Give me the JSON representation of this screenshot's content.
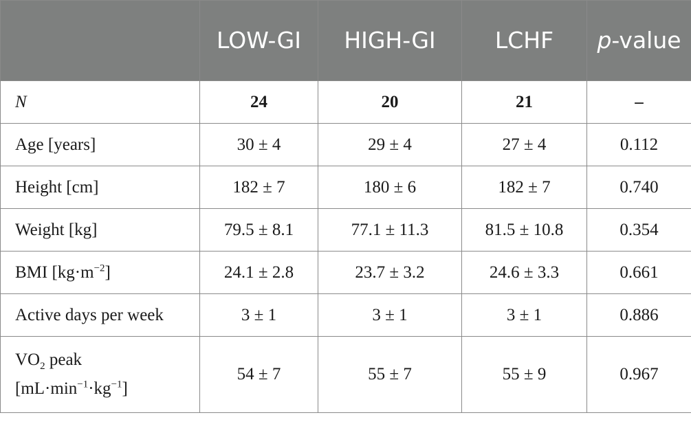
{
  "header": {
    "col1": "LOW-GI",
    "col2": "HIGH-GI",
    "col3": "LCHF",
    "col4_italic": "p",
    "col4_rest": "-value"
  },
  "rows": [
    {
      "label": "N",
      "v1": "24",
      "v2": "20",
      "v3": "21",
      "p": "–"
    },
    {
      "label": "Age [years]",
      "v1": "30 ± 4",
      "v2": "29 ± 4",
      "v3": "27 ± 4",
      "p": "0.112"
    },
    {
      "label": "Height [cm]",
      "v1": "182 ± 7",
      "v2": "180 ± 6",
      "v3": "182 ± 7",
      "p": "0.740"
    },
    {
      "label": "Weight [kg]",
      "v1": "79.5 ± 8.1",
      "v2": "77.1 ± 11.3",
      "v3": "81.5 ± 10.8",
      "p": "0.354"
    },
    {
      "label_pre": "BMI [kg·m",
      "label_sup": "−2",
      "label_post": "]",
      "v1": "24.1 ± 2.8",
      "v2": "23.7 ± 3.2",
      "v3": "24.6 ± 3.3",
      "p": "0.661"
    },
    {
      "label": "Active days per week",
      "v1": "3 ± 1",
      "v2": "3 ± 1",
      "v3": "3 ± 1",
      "p": "0.886"
    },
    {
      "label_a": "VO",
      "label_sub": "2",
      "label_b": " peak",
      "label_c": "[mL·min",
      "label_sup1": "−1",
      "label_d": "·kg",
      "label_sup2": "−1",
      "label_e": "]",
      "v1": "54 ± 7",
      "v2": "55 ± 7",
      "v3": "55 ± 9",
      "p": "0.967"
    }
  ]
}
